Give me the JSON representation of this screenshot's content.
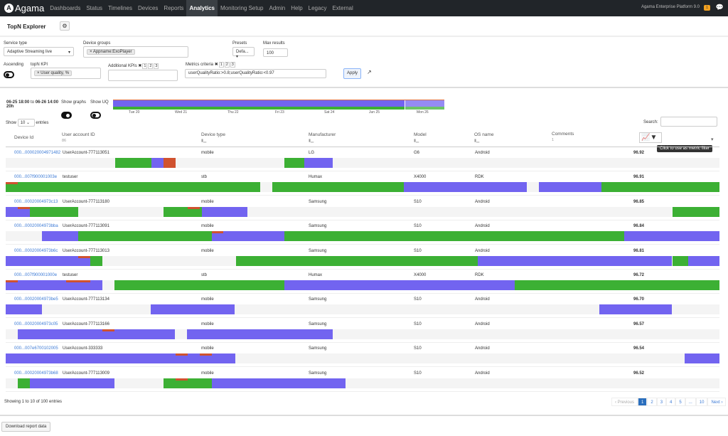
{
  "nav": {
    "brand": "Agama",
    "items": [
      "Dashboards",
      "Status",
      "Timelines",
      "Devices",
      "Reports",
      "Analytics",
      "Monitoring Setup",
      "Admin",
      "Help",
      "Legacy",
      "External"
    ],
    "active": "Analytics",
    "platform": "Agama Enterprise Platform 9.0",
    "badge": "1"
  },
  "page": {
    "title": "TopN Explorer"
  },
  "filters": {
    "service_type_label": "Service type",
    "service_type": "Adaptive Streaming live",
    "device_groups_label": "Device groups",
    "device_group_tag": "Appname:ExoPlayer",
    "presets_label": "Presets",
    "presets": "Defa...",
    "max_results_label": "Max results",
    "max_results": "100",
    "ascending_label": "Ascending",
    "topn_kpi_label": "topN KPI",
    "topn_kpi_tag": "User quality, %",
    "additional_kpis_label": "Additional KPIs",
    "metrics_criteria_label": "Metrics criteria",
    "metrics_criteria": "userQualityRatio:>0.8;userQualityRatio:<0.97",
    "apply": "Apply",
    "nums": [
      "1",
      "2",
      "3"
    ]
  },
  "overview": {
    "range_from": "06-25 18:00",
    "to": "to",
    "range_to": "06-26 14:00",
    "duration": "20h",
    "show_graphs": "Show graphs",
    "show_uq": "Show UQ",
    "days": [
      "Tue 20",
      "Wed 21",
      "Thu 22",
      "Fri 23",
      "Sat 24",
      "Jun 25",
      "Mon 26"
    ]
  },
  "table": {
    "show": "Show",
    "entries_value": "10",
    "entries": "entries",
    "search_label": "Search:",
    "headers": {
      "device_id": "Device Id",
      "user_account": "User account ID",
      "user_account_count": "86",
      "device_type": "Device type",
      "manufacturer": "Manufacturer",
      "model": "Model",
      "os": "OS name",
      "comments": "Comments",
      "comments_count": "1"
    },
    "tooltip": "Click to use as metric filter",
    "rows": [
      {
        "id": "000...000020004971482",
        "user": "UserAccount-777113051",
        "type": "mobile",
        "mfr": "LG",
        "model": "G6",
        "os": "Android",
        "value": "96.92"
      },
      {
        "id": "000...007f900001003e",
        "user": "testuser",
        "type": "stb",
        "mfr": "Humax",
        "model": "X4000",
        "os": "RDK",
        "value": "96.91"
      },
      {
        "id": "000...00020004973c13",
        "user": "UserAccount-777113180",
        "type": "mobile",
        "mfr": "Samsung",
        "model": "S10",
        "os": "Android",
        "value": "96.85"
      },
      {
        "id": "000...00020004973bba",
        "user": "UserAccount-777113091",
        "type": "mobile",
        "mfr": "Samsung",
        "model": "S10",
        "os": "Android",
        "value": "96.84"
      },
      {
        "id": "000...00020004973b6c",
        "user": "UserAccount-777113013",
        "type": "mobile",
        "mfr": "Samsung",
        "model": "S10",
        "os": "Android",
        "value": "96.81"
      },
      {
        "id": "000...007f900001000e",
        "user": "testuser",
        "type": "stb",
        "mfr": "Humax",
        "model": "X4000",
        "os": "RDK",
        "value": "96.72"
      },
      {
        "id": "000...00020004973be5",
        "user": "UserAccount-777113134",
        "type": "mobile",
        "mfr": "Samsung",
        "model": "S10",
        "os": "Android",
        "value": "96.70"
      },
      {
        "id": "000...00020004973c05",
        "user": "UserAccount-777113166",
        "type": "mobile",
        "mfr": "Samsung",
        "model": "S10",
        "os": "Android",
        "value": "96.57"
      },
      {
        "id": "000...007e6700102005",
        "user": "UserAccount-333333",
        "type": "mobile",
        "mfr": "Samsung",
        "model": "S10",
        "os": "Android",
        "value": "96.54"
      },
      {
        "id": "000...00020004973b68",
        "user": "UserAccount-777113009",
        "type": "mobile",
        "mfr": "Samsung",
        "model": "S10",
        "os": "Android",
        "value": "96.52"
      }
    ],
    "info": "Showing 1 to 10 of 100 entries",
    "pagination": {
      "previous": "Previous",
      "pages": [
        "1",
        "2",
        "3",
        "4",
        "5",
        "...",
        "10"
      ],
      "next": "Next",
      "current": "1"
    }
  },
  "download": "Download report data",
  "colors": {
    "good": "#3cb034",
    "mid": "#7264f0",
    "bad": "#d0522f"
  }
}
